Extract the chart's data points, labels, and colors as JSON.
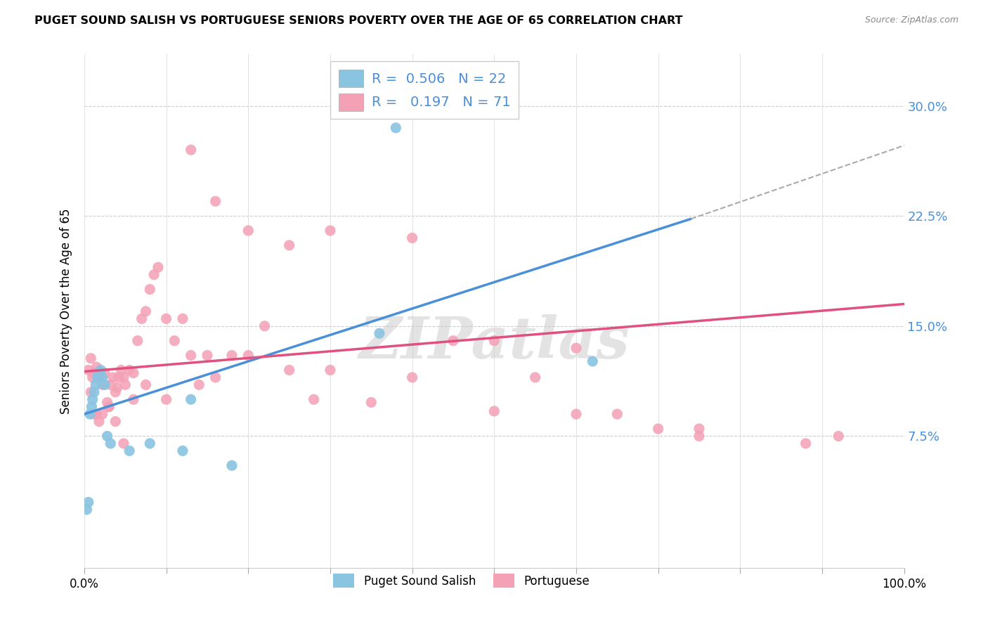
{
  "title": "PUGET SOUND SALISH VS PORTUGUESE SENIORS POVERTY OVER THE AGE OF 65 CORRELATION CHART",
  "source": "Source: ZipAtlas.com",
  "ylabel": "Seniors Poverty Over the Age of 65",
  "ytick_vals": [
    0.0,
    0.075,
    0.15,
    0.225,
    0.3
  ],
  "ytick_labels": [
    "",
    "7.5%",
    "15.0%",
    "22.5%",
    "30.0%"
  ],
  "xtick_vals": [
    0.0,
    0.1,
    0.2,
    0.3,
    0.4,
    0.5,
    0.6,
    0.7,
    0.8,
    0.9,
    1.0
  ],
  "xtick_labels": [
    "0.0%",
    "",
    "",
    "",
    "",
    "",
    "",
    "",
    "",
    "",
    "100.0%"
  ],
  "xlim": [
    0.0,
    1.0
  ],
  "ylim": [
    -0.015,
    0.335
  ],
  "color_blue": "#89c4e1",
  "color_pink": "#f4a0b5",
  "color_line_blue": "#4a90d9",
  "color_line_pink": "#e05080",
  "color_ytick": "#4a90d9",
  "watermark_text": "ZIPatlas",
  "legend_label1": "R =  0.506   N = 22",
  "legend_label2": "R =   0.197   N = 71",
  "bottom_label1": "Puget Sound Salish",
  "bottom_label2": "Portuguese",
  "blue_x": [
    0.003,
    0.005,
    0.007,
    0.009,
    0.01,
    0.012,
    0.014,
    0.016,
    0.018,
    0.02,
    0.022,
    0.025,
    0.028,
    0.032,
    0.055,
    0.08,
    0.12,
    0.13,
    0.18,
    0.36,
    0.62,
    0.38
  ],
  "blue_y": [
    0.025,
    0.03,
    0.09,
    0.095,
    0.1,
    0.105,
    0.11,
    0.115,
    0.118,
    0.12,
    0.115,
    0.11,
    0.075,
    0.07,
    0.065,
    0.07,
    0.065,
    0.1,
    0.055,
    0.145,
    0.126,
    0.285
  ],
  "pink_x": [
    0.005,
    0.008,
    0.01,
    0.012,
    0.015,
    0.015,
    0.018,
    0.02,
    0.022,
    0.025,
    0.028,
    0.03,
    0.032,
    0.035,
    0.038,
    0.04,
    0.042,
    0.045,
    0.048,
    0.05,
    0.055,
    0.06,
    0.065,
    0.07,
    0.075,
    0.08,
    0.085,
    0.09,
    0.1,
    0.11,
    0.12,
    0.13,
    0.14,
    0.15,
    0.16,
    0.18,
    0.2,
    0.22,
    0.25,
    0.28,
    0.3,
    0.35,
    0.4,
    0.45,
    0.5,
    0.55,
    0.6,
    0.65,
    0.7,
    0.75,
    0.008,
    0.012,
    0.018,
    0.022,
    0.03,
    0.038,
    0.048,
    0.06,
    0.075,
    0.1,
    0.13,
    0.16,
    0.2,
    0.25,
    0.3,
    0.4,
    0.5,
    0.6,
    0.75,
    0.88,
    0.92
  ],
  "pink_y": [
    0.12,
    0.128,
    0.115,
    0.118,
    0.122,
    0.09,
    0.118,
    0.115,
    0.11,
    0.118,
    0.098,
    0.095,
    0.11,
    0.115,
    0.105,
    0.108,
    0.115,
    0.12,
    0.115,
    0.11,
    0.12,
    0.118,
    0.14,
    0.155,
    0.16,
    0.175,
    0.185,
    0.19,
    0.155,
    0.14,
    0.155,
    0.13,
    0.11,
    0.13,
    0.115,
    0.13,
    0.13,
    0.15,
    0.12,
    0.1,
    0.12,
    0.098,
    0.115,
    0.14,
    0.092,
    0.115,
    0.135,
    0.09,
    0.08,
    0.075,
    0.105,
    0.09,
    0.085,
    0.09,
    0.095,
    0.085,
    0.07,
    0.1,
    0.11,
    0.1,
    0.27,
    0.235,
    0.215,
    0.205,
    0.215,
    0.21,
    0.14,
    0.09,
    0.08,
    0.07,
    0.075
  ],
  "blue_trend": [
    0.0,
    0.74,
    0.09,
    0.223
  ],
  "blue_dash": [
    0.74,
    1.0,
    0.223,
    0.273
  ],
  "pink_trend": [
    0.0,
    1.0,
    0.119,
    0.165
  ]
}
